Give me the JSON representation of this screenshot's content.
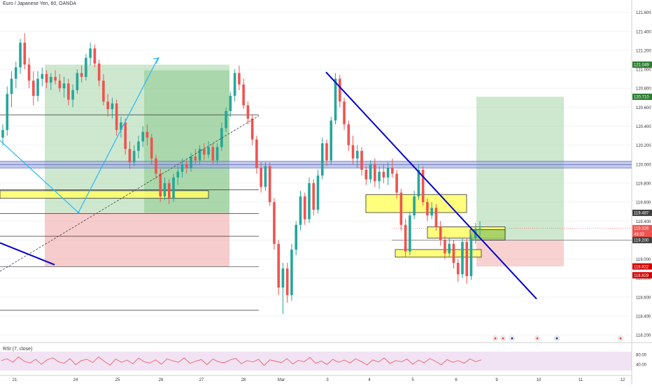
{
  "header": {
    "title": "Euro / Japanese Yen, 60, OANDA"
  },
  "rsi": {
    "label": "RSI (7, close)",
    "ticks": [
      "80.00",
      "40.00"
    ]
  },
  "colors": {
    "up": "#26a69a",
    "down": "#ef5350",
    "trendline": "#0000cc",
    "target_zone": "#a5d6a7",
    "stop_zone": "#ef9a9a",
    "highlight_zone": "#ffff66",
    "resistance_band": "#9fa8da",
    "rsi_line": "#ef5350",
    "rsi_band": "#e1bee7"
  },
  "chart_data": {
    "type": "candlestick",
    "symbol": "EURJPY",
    "interval": "60",
    "source": "OANDA",
    "x_tick_labels": [
      "21",
      "24",
      "25",
      "26",
      "27",
      "28",
      "Mar",
      "3",
      "4",
      "5",
      "6",
      "9",
      "10",
      "11",
      "12"
    ],
    "y_tick_labels": [
      "121.600",
      "121.400",
      "121.200",
      "121.000",
      "120.800",
      "120.600",
      "120.400",
      "120.200",
      "120.000",
      "119.800",
      "119.600",
      "119.400",
      "119.200",
      "119.000",
      "118.800",
      "118.600",
      "118.400",
      "118.200"
    ],
    "y_range": [
      118.12,
      121.73
    ],
    "price_labels": [
      {
        "value": 121.049,
        "text": "121.049",
        "color": "#2e7d32"
      },
      {
        "value": 120.71,
        "text": "120.710",
        "color": "#2e7d32"
      },
      {
        "value": 119.487,
        "text": "119.487",
        "color": "#424242"
      },
      {
        "value": 119.326,
        "text": "119.326",
        "color": "#ef5350"
      },
      {
        "value": 119.262,
        "text": "49:32",
        "color": "#ef5350"
      },
      {
        "value": 119.2,
        "text": "119.200",
        "color": "#424242"
      },
      {
        "value": 118.922,
        "text": "118.922",
        "color": "#d50000"
      },
      {
        "value": 118.829,
        "text": "118.829",
        "color": "#d50000"
      }
    ],
    "candles": [
      {
        "o": 120.28,
        "h": 120.42,
        "l": 120.2,
        "c": 120.36
      },
      {
        "o": 120.36,
        "h": 120.82,
        "l": 120.3,
        "c": 120.74
      },
      {
        "o": 120.74,
        "h": 120.98,
        "l": 120.6,
        "c": 120.9
      },
      {
        "o": 120.9,
        "h": 121.08,
        "l": 120.8,
        "c": 121.02
      },
      {
        "o": 121.02,
        "h": 121.32,
        "l": 120.95,
        "c": 121.28
      },
      {
        "o": 121.28,
        "h": 121.38,
        "l": 121.0,
        "c": 121.05
      },
      {
        "o": 121.05,
        "h": 121.12,
        "l": 120.8,
        "c": 120.88
      },
      {
        "o": 120.88,
        "h": 120.98,
        "l": 120.62,
        "c": 120.72
      },
      {
        "o": 120.72,
        "h": 120.98,
        "l": 120.66,
        "c": 120.9
      },
      {
        "o": 120.9,
        "h": 121.02,
        "l": 120.82,
        "c": 120.95
      },
      {
        "o": 120.95,
        "h": 120.99,
        "l": 120.8,
        "c": 120.86
      },
      {
        "o": 120.86,
        "h": 120.96,
        "l": 120.78,
        "c": 120.92
      },
      {
        "o": 120.92,
        "h": 120.99,
        "l": 120.84,
        "c": 120.88
      },
      {
        "o": 120.88,
        "h": 120.95,
        "l": 120.76,
        "c": 120.8
      },
      {
        "o": 120.8,
        "h": 120.92,
        "l": 120.7,
        "c": 120.85
      },
      {
        "o": 120.85,
        "h": 120.9,
        "l": 120.62,
        "c": 120.68
      },
      {
        "o": 120.68,
        "h": 120.84,
        "l": 120.6,
        "c": 120.78
      },
      {
        "o": 120.78,
        "h": 121.0,
        "l": 120.74,
        "c": 120.96
      },
      {
        "o": 120.96,
        "h": 121.04,
        "l": 120.86,
        "c": 120.92
      },
      {
        "o": 120.92,
        "h": 121.16,
        "l": 120.88,
        "c": 121.12
      },
      {
        "o": 121.12,
        "h": 121.28,
        "l": 121.04,
        "c": 121.22
      },
      {
        "o": 121.22,
        "h": 121.26,
        "l": 121.02,
        "c": 121.06
      },
      {
        "o": 121.06,
        "h": 121.1,
        "l": 120.82,
        "c": 120.88
      },
      {
        "o": 120.88,
        "h": 120.95,
        "l": 120.62,
        "c": 120.66
      },
      {
        "o": 120.66,
        "h": 120.74,
        "l": 120.5,
        "c": 120.58
      },
      {
        "o": 120.58,
        "h": 120.7,
        "l": 120.48,
        "c": 120.64
      },
      {
        "o": 120.64,
        "h": 120.68,
        "l": 120.3,
        "c": 120.36
      },
      {
        "o": 120.36,
        "h": 120.5,
        "l": 120.28,
        "c": 120.44
      },
      {
        "o": 120.44,
        "h": 120.48,
        "l": 120.1,
        "c": 120.16
      },
      {
        "o": 120.16,
        "h": 120.24,
        "l": 119.95,
        "c": 120.02
      },
      {
        "o": 120.02,
        "h": 120.2,
        "l": 119.98,
        "c": 120.14
      },
      {
        "o": 120.14,
        "h": 120.3,
        "l": 120.06,
        "c": 120.24
      },
      {
        "o": 120.24,
        "h": 120.4,
        "l": 120.18,
        "c": 120.34
      },
      {
        "o": 120.34,
        "h": 120.42,
        "l": 120.2,
        "c": 120.28
      },
      {
        "o": 120.28,
        "h": 120.32,
        "l": 120.0,
        "c": 120.06
      },
      {
        "o": 120.06,
        "h": 120.1,
        "l": 119.84,
        "c": 119.9
      },
      {
        "o": 119.9,
        "h": 119.95,
        "l": 119.6,
        "c": 119.66
      },
      {
        "o": 119.66,
        "h": 119.86,
        "l": 119.62,
        "c": 119.8
      },
      {
        "o": 119.8,
        "h": 119.84,
        "l": 119.58,
        "c": 119.64
      },
      {
        "o": 119.64,
        "h": 119.9,
        "l": 119.6,
        "c": 119.86
      },
      {
        "o": 119.86,
        "h": 119.98,
        "l": 119.78,
        "c": 119.92
      },
      {
        "o": 119.92,
        "h": 120.06,
        "l": 119.86,
        "c": 120.0
      },
      {
        "o": 120.0,
        "h": 120.04,
        "l": 119.9,
        "c": 119.96
      },
      {
        "o": 119.96,
        "h": 120.12,
        "l": 119.92,
        "c": 120.08
      },
      {
        "o": 120.08,
        "h": 120.16,
        "l": 120.0,
        "c": 120.04
      },
      {
        "o": 120.04,
        "h": 120.2,
        "l": 120.0,
        "c": 120.16
      },
      {
        "o": 120.16,
        "h": 120.22,
        "l": 120.04,
        "c": 120.1
      },
      {
        "o": 120.1,
        "h": 120.24,
        "l": 120.06,
        "c": 120.18
      },
      {
        "o": 120.18,
        "h": 120.22,
        "l": 120.0,
        "c": 120.04
      },
      {
        "o": 120.04,
        "h": 120.22,
        "l": 120.0,
        "c": 120.18
      },
      {
        "o": 120.18,
        "h": 120.44,
        "l": 120.14,
        "c": 120.38
      },
      {
        "o": 120.38,
        "h": 120.6,
        "l": 120.34,
        "c": 120.56
      },
      {
        "o": 120.56,
        "h": 120.76,
        "l": 120.5,
        "c": 120.72
      },
      {
        "o": 120.72,
        "h": 121.0,
        "l": 120.66,
        "c": 120.96
      },
      {
        "o": 120.96,
        "h": 121.04,
        "l": 120.78,
        "c": 120.84
      },
      {
        "o": 120.84,
        "h": 120.9,
        "l": 120.58,
        "c": 120.62
      },
      {
        "o": 120.62,
        "h": 120.66,
        "l": 120.42,
        "c": 120.48
      },
      {
        "o": 120.48,
        "h": 120.52,
        "l": 120.2,
        "c": 120.26
      },
      {
        "o": 120.26,
        "h": 120.3,
        "l": 119.9,
        "c": 119.96
      },
      {
        "o": 119.96,
        "h": 120.02,
        "l": 119.7,
        "c": 119.76
      },
      {
        "o": 119.76,
        "h": 120.02,
        "l": 119.72,
        "c": 119.98
      },
      {
        "o": 119.98,
        "h": 120.02,
        "l": 119.56,
        "c": 119.6
      },
      {
        "o": 119.6,
        "h": 119.64,
        "l": 119.1,
        "c": 119.16
      },
      {
        "o": 119.16,
        "h": 119.2,
        "l": 118.62,
        "c": 118.7
      },
      {
        "o": 118.7,
        "h": 118.96,
        "l": 118.42,
        "c": 118.9
      },
      {
        "o": 118.9,
        "h": 118.96,
        "l": 118.54,
        "c": 118.62
      },
      {
        "o": 118.62,
        "h": 119.16,
        "l": 118.56,
        "c": 119.1
      },
      {
        "o": 119.1,
        "h": 119.4,
        "l": 119.04,
        "c": 119.36
      },
      {
        "o": 119.36,
        "h": 119.72,
        "l": 119.3,
        "c": 119.66
      },
      {
        "o": 119.66,
        "h": 119.7,
        "l": 119.36,
        "c": 119.42
      },
      {
        "o": 119.42,
        "h": 119.86,
        "l": 119.38,
        "c": 119.8
      },
      {
        "o": 119.8,
        "h": 119.84,
        "l": 119.46,
        "c": 119.52
      },
      {
        "o": 119.52,
        "h": 119.94,
        "l": 119.48,
        "c": 119.88
      },
      {
        "o": 119.88,
        "h": 120.28,
        "l": 119.84,
        "c": 120.22
      },
      {
        "o": 120.22,
        "h": 120.26,
        "l": 119.98,
        "c": 120.04
      },
      {
        "o": 120.04,
        "h": 120.5,
        "l": 120.0,
        "c": 120.46
      },
      {
        "o": 120.46,
        "h": 120.96,
        "l": 120.42,
        "c": 120.9
      },
      {
        "o": 120.9,
        "h": 120.94,
        "l": 120.6,
        "c": 120.66
      },
      {
        "o": 120.66,
        "h": 120.7,
        "l": 120.36,
        "c": 120.42
      },
      {
        "o": 120.42,
        "h": 120.46,
        "l": 120.14,
        "c": 120.2
      },
      {
        "o": 120.2,
        "h": 120.3,
        "l": 120.0,
        "c": 120.06
      },
      {
        "o": 120.06,
        "h": 120.2,
        "l": 119.96,
        "c": 120.14
      },
      {
        "o": 120.14,
        "h": 120.18,
        "l": 119.88,
        "c": 119.94
      },
      {
        "o": 119.94,
        "h": 119.98,
        "l": 119.78,
        "c": 119.84
      },
      {
        "o": 119.84,
        "h": 120.04,
        "l": 119.8,
        "c": 120.0
      },
      {
        "o": 120.0,
        "h": 120.06,
        "l": 119.76,
        "c": 119.82
      },
      {
        "o": 119.82,
        "h": 119.98,
        "l": 119.74,
        "c": 119.92
      },
      {
        "o": 119.92,
        "h": 120.0,
        "l": 119.8,
        "c": 119.86
      },
      {
        "o": 119.86,
        "h": 120.02,
        "l": 119.78,
        "c": 119.96
      },
      {
        "o": 119.96,
        "h": 120.06,
        "l": 119.86,
        "c": 119.9
      },
      {
        "o": 119.9,
        "h": 119.94,
        "l": 119.64,
        "c": 119.7
      },
      {
        "o": 119.7,
        "h": 119.74,
        "l": 119.3,
        "c": 119.36
      },
      {
        "o": 119.36,
        "h": 119.42,
        "l": 119.02,
        "c": 119.08
      },
      {
        "o": 119.08,
        "h": 119.5,
        "l": 119.04,
        "c": 119.46
      },
      {
        "o": 119.46,
        "h": 119.72,
        "l": 119.42,
        "c": 119.66
      },
      {
        "o": 119.66,
        "h": 120.0,
        "l": 119.62,
        "c": 119.94
      },
      {
        "o": 119.94,
        "h": 119.98,
        "l": 119.56,
        "c": 119.6
      },
      {
        "o": 119.6,
        "h": 119.64,
        "l": 119.4,
        "c": 119.46
      },
      {
        "o": 119.46,
        "h": 119.6,
        "l": 119.42,
        "c": 119.54
      },
      {
        "o": 119.54,
        "h": 119.58,
        "l": 119.3,
        "c": 119.34
      },
      {
        "o": 119.34,
        "h": 119.4,
        "l": 119.14,
        "c": 119.2
      },
      {
        "o": 119.2,
        "h": 119.24,
        "l": 119.0,
        "c": 119.06
      },
      {
        "o": 119.06,
        "h": 119.22,
        "l": 119.02,
        "c": 119.16
      },
      {
        "o": 119.16,
        "h": 119.2,
        "l": 118.9,
        "c": 118.96
      },
      {
        "o": 118.96,
        "h": 119.0,
        "l": 118.76,
        "c": 118.84
      },
      {
        "o": 118.84,
        "h": 119.22,
        "l": 118.8,
        "c": 119.18
      },
      {
        "o": 119.18,
        "h": 119.22,
        "l": 118.74,
        "c": 118.82
      },
      {
        "o": 118.82,
        "h": 119.26,
        "l": 118.78,
        "c": 119.22
      },
      {
        "o": 119.22,
        "h": 119.38,
        "l": 119.16,
        "c": 119.32
      },
      {
        "o": 119.32,
        "h": 119.4,
        "l": 119.24,
        "c": 119.326
      }
    ],
    "rsi_values": [
      55,
      62,
      48,
      70,
      52,
      45,
      60,
      40,
      58,
      66,
      50,
      44,
      63,
      38,
      55,
      60,
      47,
      70,
      52,
      36,
      61,
      48,
      57,
      42,
      65,
      50,
      45,
      58,
      40,
      62,
      54,
      48,
      66,
      44,
      52,
      59,
      38,
      61,
      50,
      46,
      57,
      64,
      42,
      55,
      49,
      60,
      35,
      58,
      52,
      47,
      63,
      41,
      56,
      50,
      68,
      44,
      53,
      39,
      60,
      48,
      57,
      45,
      62,
      51,
      37,
      58,
      49,
      66,
      43,
      55,
      50,
      61,
      40,
      57,
      46,
      63,
      52,
      38,
      59,
      48,
      55,
      44,
      62,
      50,
      58
    ],
    "annotations": {
      "target_boxes": [
        {
          "from": 121.049,
          "to": 119.487
        },
        {
          "from": 120.71,
          "to": 119.2
        }
      ],
      "stop_boxes": [
        {
          "from": 119.487,
          "to": 118.922
        },
        {
          "from": 119.2,
          "to": 118.922
        }
      ],
      "horizontal_levels": [
        120.52,
        119.73,
        119.48,
        119.24,
        118.92,
        118.46
      ],
      "resistance_band": [
        119.96,
        120.03
      ],
      "highlight_zones": [
        {
          "from": 119.72,
          "to": 119.64
        },
        {
          "from": 119.68,
          "to": 119.49
        },
        {
          "from": 119.34,
          "to": 119.22
        },
        {
          "from": 119.1,
          "to": 119.02
        },
        {
          "from": 119.31,
          "to": 119.2
        }
      ]
    }
  }
}
